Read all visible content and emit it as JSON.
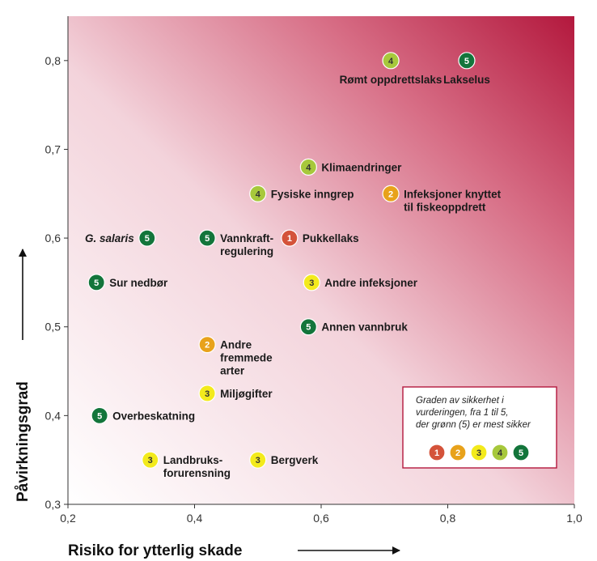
{
  "chart_data": {
    "type": "scatter",
    "xlabel": "Risiko for ytterlig skade",
    "ylabel": "Påvirkningsgrad",
    "xlim": [
      0.2,
      1.0
    ],
    "ylim": [
      0.3,
      0.85
    ],
    "xticks": [
      {
        "value": 0.2,
        "label": "0,2"
      },
      {
        "value": 0.4,
        "label": "0,4"
      },
      {
        "value": 0.6,
        "label": "0,6"
      },
      {
        "value": 0.8,
        "label": "0,8"
      },
      {
        "value": 1.0,
        "label": "1,0"
      }
    ],
    "yticks": [
      {
        "value": 0.3,
        "label": "0,3"
      },
      {
        "value": 0.4,
        "label": "0,4"
      },
      {
        "value": 0.5,
        "label": "0,5"
      },
      {
        "value": 0.6,
        "label": "0,6"
      },
      {
        "value": 0.7,
        "label": "0,7"
      },
      {
        "value": 0.8,
        "label": "0,8"
      }
    ],
    "certainty_colors": {
      "1": "#d4533a",
      "2": "#e8a21b",
      "3": "#f3ea1c",
      "4": "#a7c83c",
      "5": "#13753b"
    },
    "points": [
      {
        "label": [
          "Rømt oppdrettslaks"
        ],
        "x": 0.71,
        "y": 0.8,
        "certainty": 4,
        "pos": "below"
      },
      {
        "label": [
          "Lakselus"
        ],
        "x": 0.83,
        "y": 0.8,
        "certainty": 5,
        "pos": "below"
      },
      {
        "label": [
          "Klimaendringer"
        ],
        "x": 0.58,
        "y": 0.68,
        "certainty": 4,
        "pos": "right"
      },
      {
        "label": [
          "Fysiske inngrep"
        ],
        "x": 0.5,
        "y": 0.65,
        "certainty": 4,
        "pos": "right"
      },
      {
        "label": [
          "Infeksjoner knyttet",
          "til fiskeoppdrett"
        ],
        "x": 0.71,
        "y": 0.65,
        "certainty": 2,
        "pos": "right"
      },
      {
        "label": [
          "G. salaris"
        ],
        "x": 0.325,
        "y": 0.6,
        "certainty": 5,
        "pos": "left",
        "italic": true
      },
      {
        "label": [
          "Vannkraft-",
          "regulering"
        ],
        "x": 0.42,
        "y": 0.6,
        "certainty": 5,
        "pos": "right"
      },
      {
        "label": [
          "Pukkellaks"
        ],
        "x": 0.55,
        "y": 0.6,
        "certainty": 1,
        "pos": "right"
      },
      {
        "label": [
          "Sur nedbør"
        ],
        "x": 0.245,
        "y": 0.55,
        "certainty": 5,
        "pos": "right"
      },
      {
        "label": [
          "Andre infeksjoner"
        ],
        "x": 0.585,
        "y": 0.55,
        "certainty": 3,
        "pos": "right"
      },
      {
        "label": [
          "Annen vannbruk"
        ],
        "x": 0.58,
        "y": 0.5,
        "certainty": 5,
        "pos": "right"
      },
      {
        "label": [
          "Andre",
          "fremmede",
          "arter"
        ],
        "x": 0.42,
        "y": 0.48,
        "certainty": 2,
        "pos": "right"
      },
      {
        "label": [
          "Miljøgifter"
        ],
        "x": 0.42,
        "y": 0.425,
        "certainty": 3,
        "pos": "right"
      },
      {
        "label": [
          "Overbeskatning"
        ],
        "x": 0.25,
        "y": 0.4,
        "certainty": 5,
        "pos": "right"
      },
      {
        "label": [
          "Landbruks-",
          "forurensning"
        ],
        "x": 0.33,
        "y": 0.35,
        "certainty": 3,
        "pos": "right"
      },
      {
        "label": [
          "Bergverk"
        ],
        "x": 0.5,
        "y": 0.35,
        "certainty": 3,
        "pos": "right"
      }
    ],
    "legend": {
      "title_lines": [
        "Graden av sikkerhet i",
        "vurderingen, fra 1 til 5,",
        "der grønn (5) er mest sikker"
      ],
      "levels": [
        1,
        2,
        3,
        4,
        5
      ],
      "placement": "bottom-right"
    }
  }
}
